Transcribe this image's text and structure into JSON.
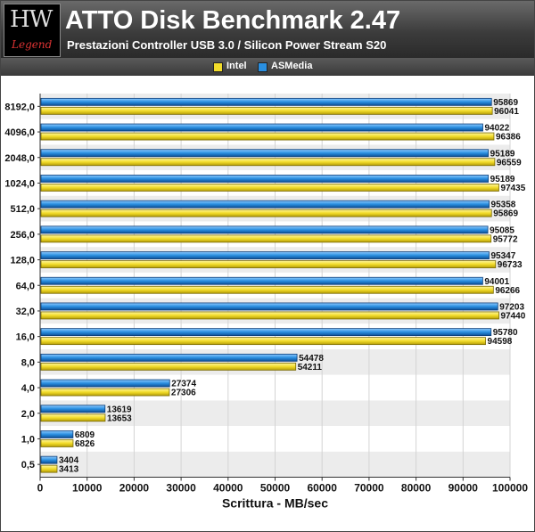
{
  "header": {
    "logo_text": "HW",
    "logo_sub": "Legend"
  },
  "colors": {
    "intel": "#f2dc2a",
    "asmedia": "#2a8fe0"
  },
  "chart_data": {
    "type": "bar",
    "orientation": "horizontal",
    "title": "ATTO Disk Benchmark 2.47",
    "subtitle": "Prestazioni Controller USB 3.0 / Silicon Power Stream S20",
    "xlabel": "Scrittura - MB/sec",
    "ylabel": "",
    "xlim": [
      0,
      100000
    ],
    "xticks": [
      "0",
      "10000",
      "20000",
      "30000",
      "40000",
      "50000",
      "60000",
      "70000",
      "80000",
      "90000",
      "100000"
    ],
    "grid": true,
    "legend_position": "top",
    "categories": [
      "8192,0",
      "4096,0",
      "2048,0",
      "1024,0",
      "512,0",
      "256,0",
      "128,0",
      "64,0",
      "32,0",
      "16,0",
      "8,0",
      "4,0",
      "2,0",
      "1,0",
      "0,5"
    ],
    "series": [
      {
        "name": "Intel",
        "values": [
          96041,
          96386,
          96559,
          97435,
          95869,
          95772,
          96733,
          96266,
          97440,
          94598,
          54211,
          27306,
          13653,
          6826,
          3413
        ]
      },
      {
        "name": "ASMedia",
        "values": [
          95869,
          94022,
          95189,
          95189,
          95358,
          95085,
          95347,
          94001,
          97203,
          95780,
          54478,
          27374,
          13619,
          6809,
          3404
        ]
      }
    ]
  }
}
